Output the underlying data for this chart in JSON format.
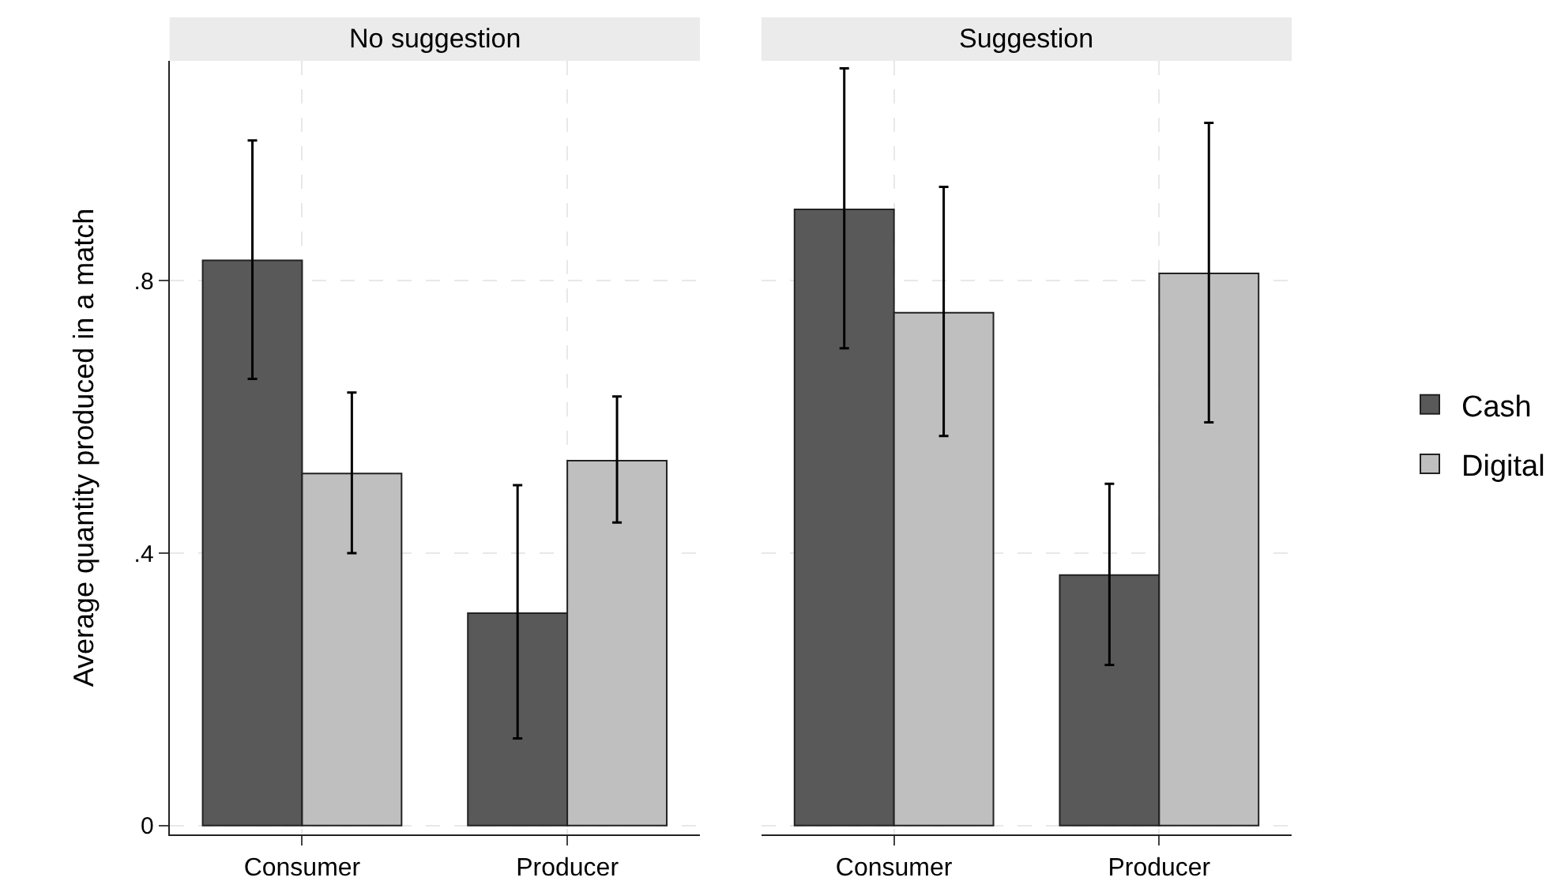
{
  "chart_data": [
    {
      "type": "bar",
      "title": "No suggestion",
      "ylabel": "Average quantity produced in a match",
      "categories": [
        "Consumer",
        "Producer"
      ],
      "series": [
        {
          "color": "#595959",
          "values": [
            0.83,
            0.312
          ],
          "errors": [
            [
              0.656,
              1.006
            ],
            [
              0.128,
              0.5
            ]
          ]
        },
        {
          "color": "#bfbfbf",
          "values": [
            0.517,
            0.536
          ],
          "errors": [
            [
              0.4,
              0.636
            ],
            [
              0.445,
              0.63
            ]
          ]
        }
      ],
      "ylim": [
        -0.013,
        1.123
      ],
      "yticks": [
        0,
        {
          "value": 0.4,
          "label": ".4"
        },
        {
          "value": 0.8,
          "label": ".8"
        }
      ],
      "grid": true
    },
    {
      "type": "bar",
      "title": "Suggestion",
      "categories": [
        "Consumer",
        "Producer"
      ],
      "series": [
        {
          "name": "Cash",
          "color": "#595959",
          "values": [
            0.905,
            0.368
          ],
          "errors": [
            [
              0.701,
              1.112
            ],
            [
              0.236,
              0.502
            ]
          ]
        },
        {
          "name": "Digital",
          "color": "#bfbfbf",
          "values": [
            0.753,
            0.811
          ],
          "errors": [
            [
              0.572,
              0.938
            ],
            [
              0.592,
              1.032
            ]
          ]
        }
      ],
      "ylim": [
        -0.013,
        1.123
      ],
      "yticks": [
        {
          "value": 0,
          "label": null
        },
        {
          "value": 0.4,
          "label": null
        },
        {
          "value": 0.8,
          "label": null
        }
      ],
      "grid": true,
      "legend": "right",
      "tick_labels": "x"
    }
  ]
}
